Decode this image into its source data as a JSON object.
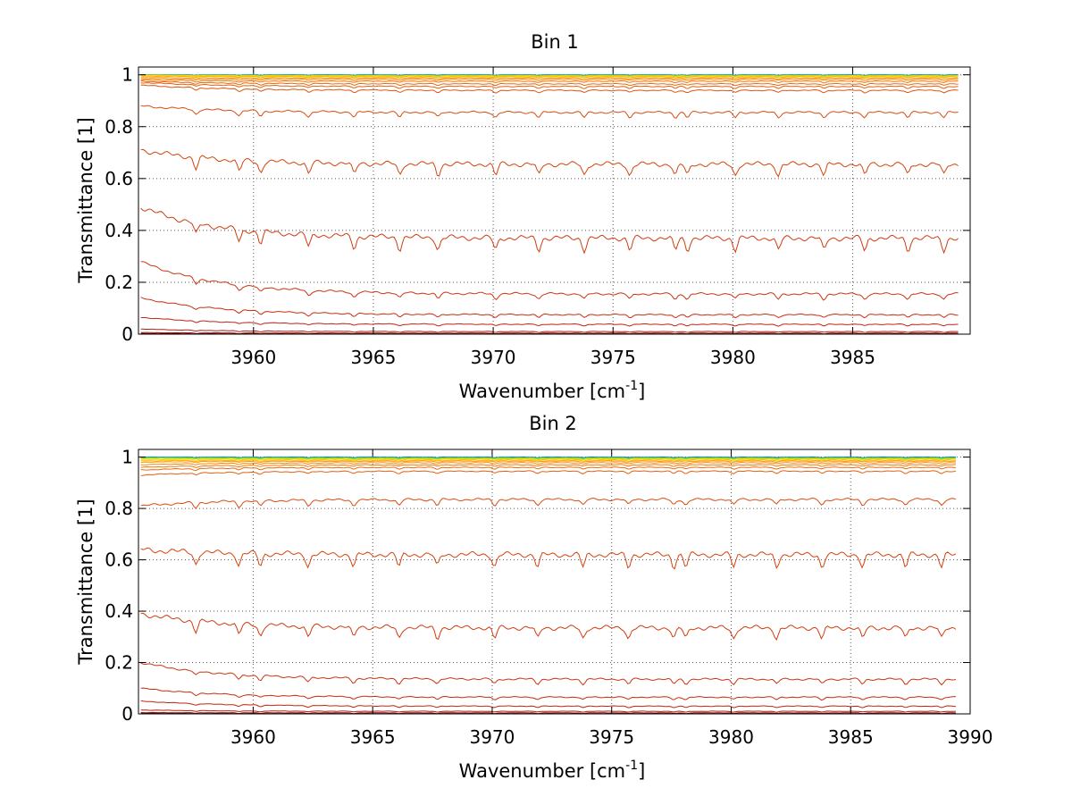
{
  "chart_data": [
    {
      "type": "line",
      "title": "Bin 1",
      "xlabel": "Wavenumber [cm",
      "xlabel_sup": "-1",
      "xlabel_end": "]",
      "ylabel": "Transmittance [1]",
      "xlim": [
        3955.2,
        3989.9
      ],
      "ylim": [
        0,
        1.03
      ],
      "grid": true,
      "legend": "none",
      "x_ticks": [
        3960,
        3965,
        3970,
        3975,
        3980,
        3985
      ],
      "x_tick_labels": [
        "3960",
        "3965",
        "3970",
        "3975",
        "3980",
        "3985"
      ],
      "y_ticks": [
        0,
        0.2,
        0.4,
        0.6,
        0.8,
        1
      ],
      "y_tick_labels": [
        "0",
        "0.2",
        "0.4",
        "0.6",
        "0.8",
        "1"
      ],
      "x_start": 3955.3,
      "x_end": 3989.4,
      "series": [
        {
          "color": "#0050e0",
          "start": 1.0,
          "level": 1.0
        },
        {
          "color": "#00b0d8",
          "start": 1.0,
          "level": 1.0
        },
        {
          "color": "#30d060",
          "start": 1.0,
          "level": 0.998
        },
        {
          "color": "#c8e000",
          "start": 0.999,
          "level": 0.997
        },
        {
          "color": "#ffd000",
          "start": 0.998,
          "level": 0.995
        },
        {
          "color": "#ffb000",
          "start": 0.995,
          "level": 0.992
        },
        {
          "color": "#ff9a10",
          "start": 0.99,
          "level": 0.987
        },
        {
          "color": "#f88a10",
          "start": 0.985,
          "level": 0.982
        },
        {
          "color": "#f07a10",
          "start": 0.98,
          "level": 0.975
        },
        {
          "color": "#e86a10",
          "start": 0.975,
          "level": 0.965
        },
        {
          "color": "#e26010",
          "start": 0.97,
          "level": 0.955
        },
        {
          "color": "#dc5610",
          "start": 0.96,
          "level": 0.94
        },
        {
          "color": "#d84c10",
          "start": 0.88,
          "level": 0.855
        },
        {
          "color": "#d44410",
          "start": 0.71,
          "level": 0.655
        },
        {
          "color": "#d03c10",
          "start": 0.49,
          "level": 0.37
        },
        {
          "color": "#cc3410",
          "start": 0.28,
          "level": 0.155
        },
        {
          "color": "#c82c10",
          "start": 0.14,
          "level": 0.075
        },
        {
          "color": "#c02410",
          "start": 0.065,
          "level": 0.038
        },
        {
          "color": "#b01c10",
          "start": 0.02,
          "level": 0.01
        },
        {
          "color": "#901010",
          "start": 0.006,
          "level": 0.004
        },
        {
          "color": "#700808",
          "start": 0.002,
          "level": 0.001
        }
      ]
    },
    {
      "type": "line",
      "title": "Bin 2",
      "xlabel": "Wavenumber [cm",
      "xlabel_sup": "-1",
      "xlabel_end": "]",
      "ylabel": "Transmittance [1]",
      "xlim": [
        3955.2,
        3990.0
      ],
      "ylim": [
        0,
        1.03
      ],
      "grid": true,
      "legend": "none",
      "x_ticks": [
        3960,
        3965,
        3970,
        3975,
        3980,
        3985,
        3990
      ],
      "x_tick_labels": [
        "3960",
        "3965",
        "3970",
        "3975",
        "3980",
        "3985",
        "3990"
      ],
      "y_ticks": [
        0,
        0.2,
        0.4,
        0.6,
        0.8,
        1
      ],
      "y_tick_labels": [
        "0",
        "0.2",
        "0.4",
        "0.6",
        "0.8",
        "1"
      ],
      "x_start": 3955.3,
      "x_end": 3989.4,
      "series": [
        {
          "color": "#0050e0",
          "start": 1.0,
          "level": 1.0
        },
        {
          "color": "#00b0d8",
          "start": 1.0,
          "level": 0.999
        },
        {
          "color": "#30d060",
          "start": 0.998,
          "level": 0.997
        },
        {
          "color": "#c8e000",
          "start": 0.995,
          "level": 0.995
        },
        {
          "color": "#ffd000",
          "start": 0.99,
          "level": 0.992
        },
        {
          "color": "#ffb000",
          "start": 0.985,
          "level": 0.988
        },
        {
          "color": "#ff9a10",
          "start": 0.98,
          "level": 0.984
        },
        {
          "color": "#f88a10",
          "start": 0.97,
          "level": 0.978
        },
        {
          "color": "#f07a10",
          "start": 0.96,
          "level": 0.97
        },
        {
          "color": "#e86a10",
          "start": 0.95,
          "level": 0.96
        },
        {
          "color": "#e26010",
          "start": 0.93,
          "level": 0.945
        },
        {
          "color": "#d84c10",
          "start": 0.81,
          "level": 0.835
        },
        {
          "color": "#d44410",
          "start": 0.64,
          "level": 0.62
        },
        {
          "color": "#d03c10",
          "start": 0.39,
          "level": 0.335
        },
        {
          "color": "#cc3410",
          "start": 0.2,
          "level": 0.135
        },
        {
          "color": "#c82c10",
          "start": 0.1,
          "level": 0.065
        },
        {
          "color": "#c02410",
          "start": 0.05,
          "level": 0.03
        },
        {
          "color": "#b01c10",
          "start": 0.015,
          "level": 0.01
        },
        {
          "color": "#901010",
          "start": 0.005,
          "level": 0.004
        },
        {
          "color": "#700808",
          "start": 0.002,
          "level": 0.001
        }
      ]
    }
  ]
}
